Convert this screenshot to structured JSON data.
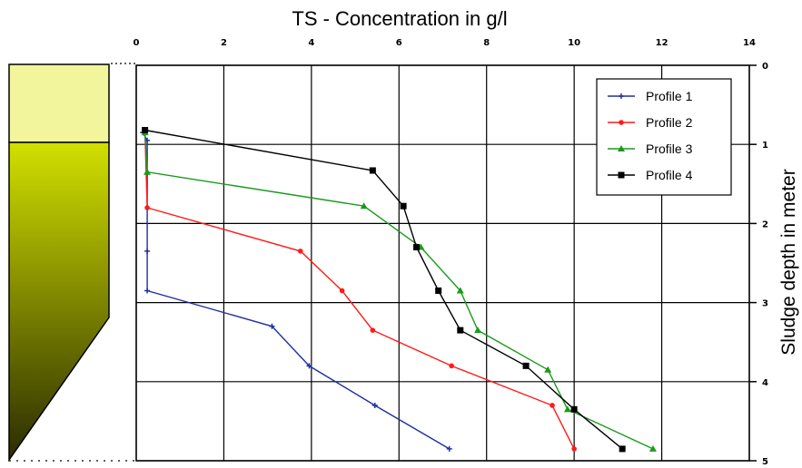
{
  "chart_data": {
    "type": "line",
    "title": "TS - Concentration in g/l",
    "xlabel": "",
    "ylabel": "Sludge depth in meter",
    "x_axis_position": "top",
    "y_axis_position": "right",
    "y_inverted": true,
    "xlim": [
      0,
      14
    ],
    "ylim": [
      0,
      5
    ],
    "x_ticks": [
      "0",
      "2",
      "4",
      "6",
      "8",
      "10",
      "12",
      "14"
    ],
    "y_ticks": [
      "0",
      "1",
      "2",
      "3",
      "4",
      "5"
    ],
    "grid": true,
    "legend_position": "top-right",
    "series": [
      {
        "name": "Profile 1",
        "color": "#1f2fa0",
        "marker": "plus",
        "points": [
          [
            0.15,
            0.85
          ],
          [
            0.25,
            0.95
          ],
          [
            0.25,
            2.35
          ],
          [
            0.25,
            2.85
          ],
          [
            3.1,
            3.3
          ],
          [
            3.95,
            3.8
          ],
          [
            5.45,
            4.3
          ],
          [
            7.15,
            4.85
          ]
        ]
      },
      {
        "name": "Profile 2",
        "color": "#ff1a1a",
        "marker": "circle",
        "points": [
          [
            0.2,
            0.85
          ],
          [
            0.25,
            1.8
          ],
          [
            3.75,
            2.35
          ],
          [
            4.7,
            2.85
          ],
          [
            5.4,
            3.35
          ],
          [
            7.2,
            3.8
          ],
          [
            9.5,
            4.3
          ],
          [
            10.0,
            4.85
          ]
        ]
      },
      {
        "name": "Profile 3",
        "color": "#1a9a1a",
        "marker": "triangle",
        "points": [
          [
            0.2,
            0.85
          ],
          [
            0.25,
            1.35
          ],
          [
            5.2,
            1.78
          ],
          [
            6.5,
            2.3
          ],
          [
            7.4,
            2.85
          ],
          [
            7.8,
            3.35
          ],
          [
            9.4,
            3.85
          ],
          [
            9.85,
            4.35
          ],
          [
            11.8,
            4.85
          ]
        ]
      },
      {
        "name": "Profile 4",
        "color": "#000000",
        "marker": "square",
        "points": [
          [
            0.2,
            0.82
          ],
          [
            5.4,
            1.33
          ],
          [
            6.1,
            1.78
          ],
          [
            6.4,
            2.3
          ],
          [
            6.9,
            2.85
          ],
          [
            7.4,
            3.35
          ],
          [
            8.9,
            3.8
          ],
          [
            10.0,
            4.35
          ],
          [
            11.1,
            4.85
          ]
        ]
      }
    ]
  },
  "sludge_column": {
    "top_color": "#f2f59c",
    "gradient_top": "#d2e000",
    "gradient_bottom": "#2a2c00"
  }
}
